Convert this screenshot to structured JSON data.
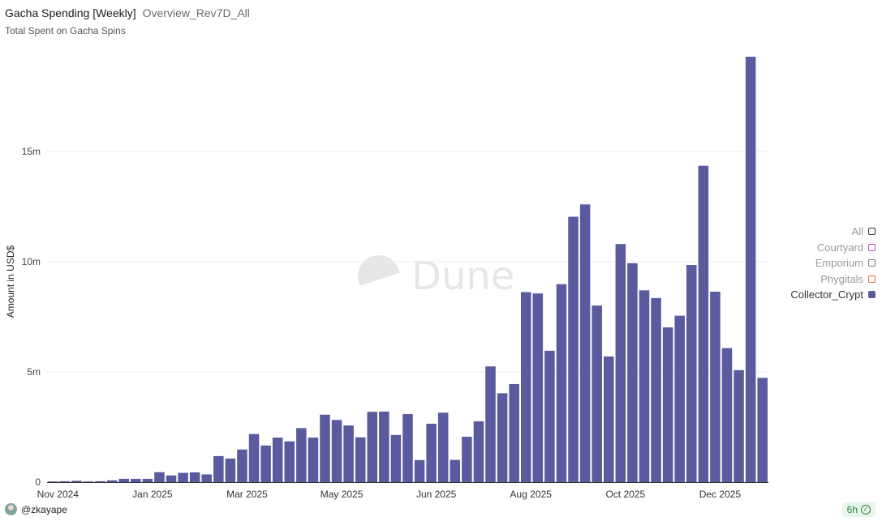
{
  "header": {
    "title": "Gacha Spending [Weekly]",
    "tag": "Overview_Rev7D_All",
    "description": "Total Spent on Gacha Spins"
  },
  "watermark": "Dune",
  "footer": {
    "user": "@zkayape",
    "freshness": "6h"
  },
  "legend": [
    {
      "label": "All",
      "color": "#333333",
      "active": false
    },
    {
      "label": "Courtyard",
      "color": "#b64bb4",
      "active": false
    },
    {
      "label": "Emporium",
      "color": "#777777",
      "active": false
    },
    {
      "label": "Phygitals",
      "color": "#e0633a",
      "active": false
    },
    {
      "label": "Collector_Crypt",
      "color": "#5a5a9e",
      "active": true
    }
  ],
  "chart_data": {
    "type": "bar",
    "ylabel": "Amount in USD$",
    "ylim": [
      0,
      19300000
    ],
    "yticks": [
      0,
      5000000,
      10000000,
      15000000
    ],
    "ytick_labels": [
      "0",
      "5m",
      "10m",
      "15m"
    ],
    "x_tick_labels": [
      "Nov 2024",
      "Jan 2025",
      "Mar 2025",
      "May 2025",
      "Jun 2025",
      "Aug 2025",
      "Oct 2025",
      "Dec 2025"
    ],
    "x_tick_bar_index": [
      0,
      8,
      16,
      24,
      32,
      40,
      48,
      56
    ],
    "grid": true,
    "legend_position": "right",
    "series": [
      {
        "name": "Collector_Crypt",
        "color": "#5a5a9e",
        "values": [
          20000,
          40000,
          60000,
          30000,
          40000,
          80000,
          150000,
          150000,
          150000,
          450000,
          300000,
          420000,
          440000,
          350000,
          1180000,
          1070000,
          1480000,
          2180000,
          1660000,
          2020000,
          1850000,
          2450000,
          2020000,
          3060000,
          2820000,
          2570000,
          2030000,
          3190000,
          3200000,
          2140000,
          3090000,
          1000000,
          2650000,
          3150000,
          1010000,
          2060000,
          2760000,
          5250000,
          4030000,
          4450000,
          8620000,
          8560000,
          5960000,
          8980000,
          12040000,
          12600000,
          8010000,
          5700000,
          10800000,
          9930000,
          8700000,
          8350000,
          7020000,
          7550000,
          9850000,
          14350000,
          8640000,
          6080000,
          5080000,
          19300000,
          4730000
        ]
      }
    ]
  }
}
